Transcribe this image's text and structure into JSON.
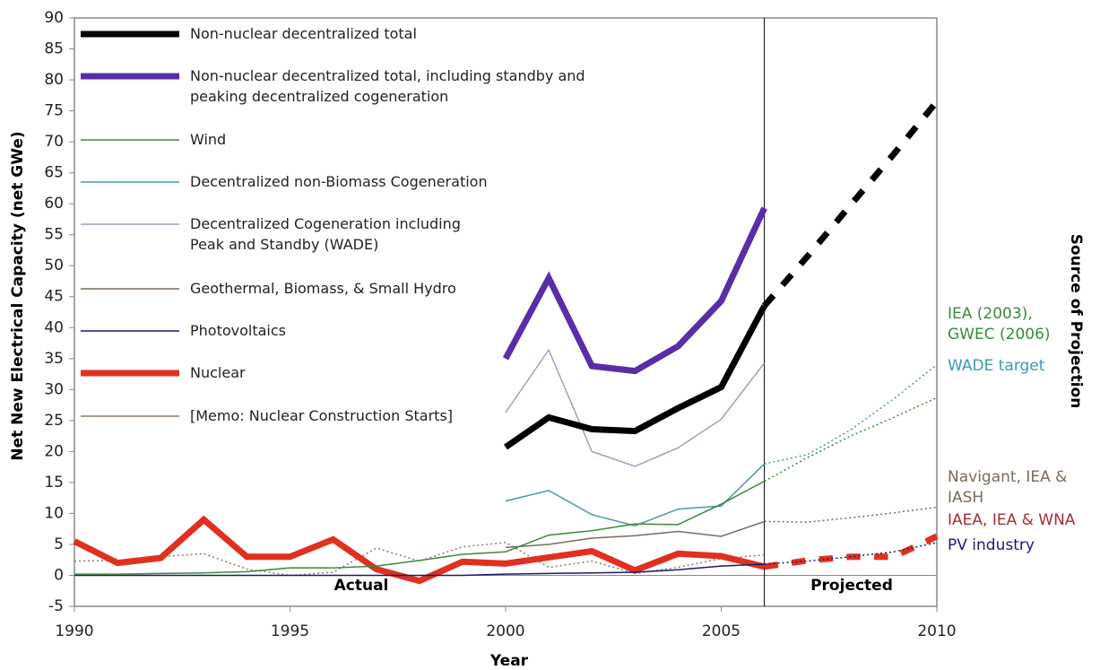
{
  "chart_data": {
    "type": "line",
    "xlabel": "Year",
    "ylabel": "Net New Electrical Capacity (net GWe)",
    "xlim": [
      1990,
      2010
    ],
    "xticks": [
      1990,
      1995,
      2000,
      2005,
      2010
    ],
    "ylim": [
      -5,
      90
    ],
    "yticks": [
      -5,
      0,
      5,
      10,
      15,
      20,
      25,
      30,
      35,
      40,
      45,
      50,
      55,
      60,
      65,
      70,
      75,
      80,
      85,
      90
    ],
    "projection_start": 2006,
    "legend": "upper left",
    "x": [
      1990,
      1991,
      1992,
      1993,
      1994,
      1995,
      1996,
      1997,
      1998,
      1999,
      2000,
      2001,
      2002,
      2003,
      2004,
      2005,
      2006,
      2007,
      2008,
      2009,
      2010
    ],
    "series": [
      {
        "name": "Non-nuclear decentralized total",
        "color": "#000000",
        "width": 7,
        "projection_style": "dashed",
        "values": [
          null,
          null,
          null,
          null,
          null,
          null,
          null,
          null,
          null,
          null,
          20.7,
          25.5,
          23.6,
          23.3,
          27,
          30.4,
          43.5,
          51.5,
          59.8,
          68,
          76.5
        ]
      },
      {
        "name": "Non-nuclear decentralized total, including standby and\npeaking decentralized cogeneration",
        "color": "#5a2ca8",
        "width": 7,
        "values": [
          null,
          null,
          null,
          null,
          null,
          null,
          null,
          null,
          null,
          null,
          35,
          48,
          33.8,
          33,
          37,
          44.3,
          59.3,
          null,
          null,
          null,
          null
        ]
      },
      {
        "name": "Wind",
        "color": "#3a8a3a",
        "width": 1.5,
        "projection_style": "dotted",
        "values": [
          0.2,
          0.2,
          0.3,
          0.4,
          0.6,
          1.2,
          1.2,
          1.5,
          2.4,
          3.4,
          3.8,
          6.5,
          7.2,
          8.3,
          8.2,
          11.5,
          15.2,
          19,
          22.5,
          25.5,
          28.7
        ]
      },
      {
        "name": "Decentralized non-Biomass Cogeneration",
        "color": "#4a9aa0",
        "width": 1.5,
        "projection_style": "dotted",
        "values": [
          null,
          null,
          null,
          null,
          null,
          null,
          null,
          null,
          null,
          null,
          12,
          13.7,
          9.8,
          8,
          10.7,
          11.2,
          18,
          19.5,
          23.5,
          28.5,
          34
        ]
      },
      {
        "name": "Decentralized Cogeneration including\nPeak and Standby (WADE)",
        "color": "#a89ac0",
        "width": 1.5,
        "values": [
          null,
          null,
          null,
          null,
          null,
          null,
          null,
          null,
          null,
          null,
          26.3,
          36.4,
          20,
          17.6,
          20.6,
          25.2,
          34.3,
          null,
          null,
          null,
          null
        ]
      },
      {
        "name": "Geothermal, Biomass, & Small Hydro",
        "color": "#7a6a5a",
        "width": 1.5,
        "projection_style": "dotted",
        "values": [
          null,
          null,
          null,
          null,
          null,
          null,
          null,
          null,
          null,
          null,
          4.5,
          5,
          6,
          6.4,
          7.1,
          6.3,
          8.7,
          8.6,
          9.3,
          10.1,
          11
        ]
      },
      {
        "name": "Photovoltaics",
        "color": "#1a1a6a",
        "width": 1.5,
        "projection_style": "dotted",
        "values": [
          0,
          0,
          0,
          0,
          0,
          0,
          0,
          0,
          0,
          0,
          0.2,
          0.3,
          0.4,
          0.5,
          0.9,
          1.5,
          1.8,
          2.3,
          3,
          3.8,
          5.3
        ]
      },
      {
        "name": "Nuclear",
        "color": "#e03020",
        "width": 7,
        "projection_style": "dashed",
        "values": [
          5.5,
          2,
          2.8,
          9,
          3,
          3,
          5.8,
          1,
          -0.9,
          2.2,
          1.9,
          2.9,
          3.9,
          0.8,
          3.5,
          3.1,
          1.4,
          2.4,
          3,
          3,
          6.3
        ]
      },
      {
        "name": "[Memo: Nuclear Construction Starts]",
        "color": "#8a7a6a",
        "width": 1.5,
        "style": "dotted",
        "values": [
          2.3,
          2.4,
          3,
          3.5,
          1,
          0,
          0.5,
          4.4,
          2.3,
          4.6,
          5.3,
          1.3,
          2.3,
          0.3,
          1.3,
          2.7,
          3.3,
          null,
          null,
          null,
          null
        ]
      }
    ],
    "annotations": {
      "actual": "Actual",
      "projected": "Projected",
      "source_title": "Source of Projection",
      "sources": [
        {
          "lines": [
            "IEA (2003),",
            "GWEC (2006)"
          ],
          "color": "#3a8a3a"
        },
        {
          "lines": [
            "WADE target"
          ],
          "color": "#3a9ab0"
        },
        {
          "lines": [
            "Navigant, IEA &",
            "IASH"
          ],
          "color": "#7a6a5a"
        },
        {
          "lines": [
            "IAEA, IEA & WNA"
          ],
          "color": "#a03030"
        },
        {
          "lines": [
            "PV industry"
          ],
          "color": "#1a1a7a"
        }
      ]
    }
  }
}
